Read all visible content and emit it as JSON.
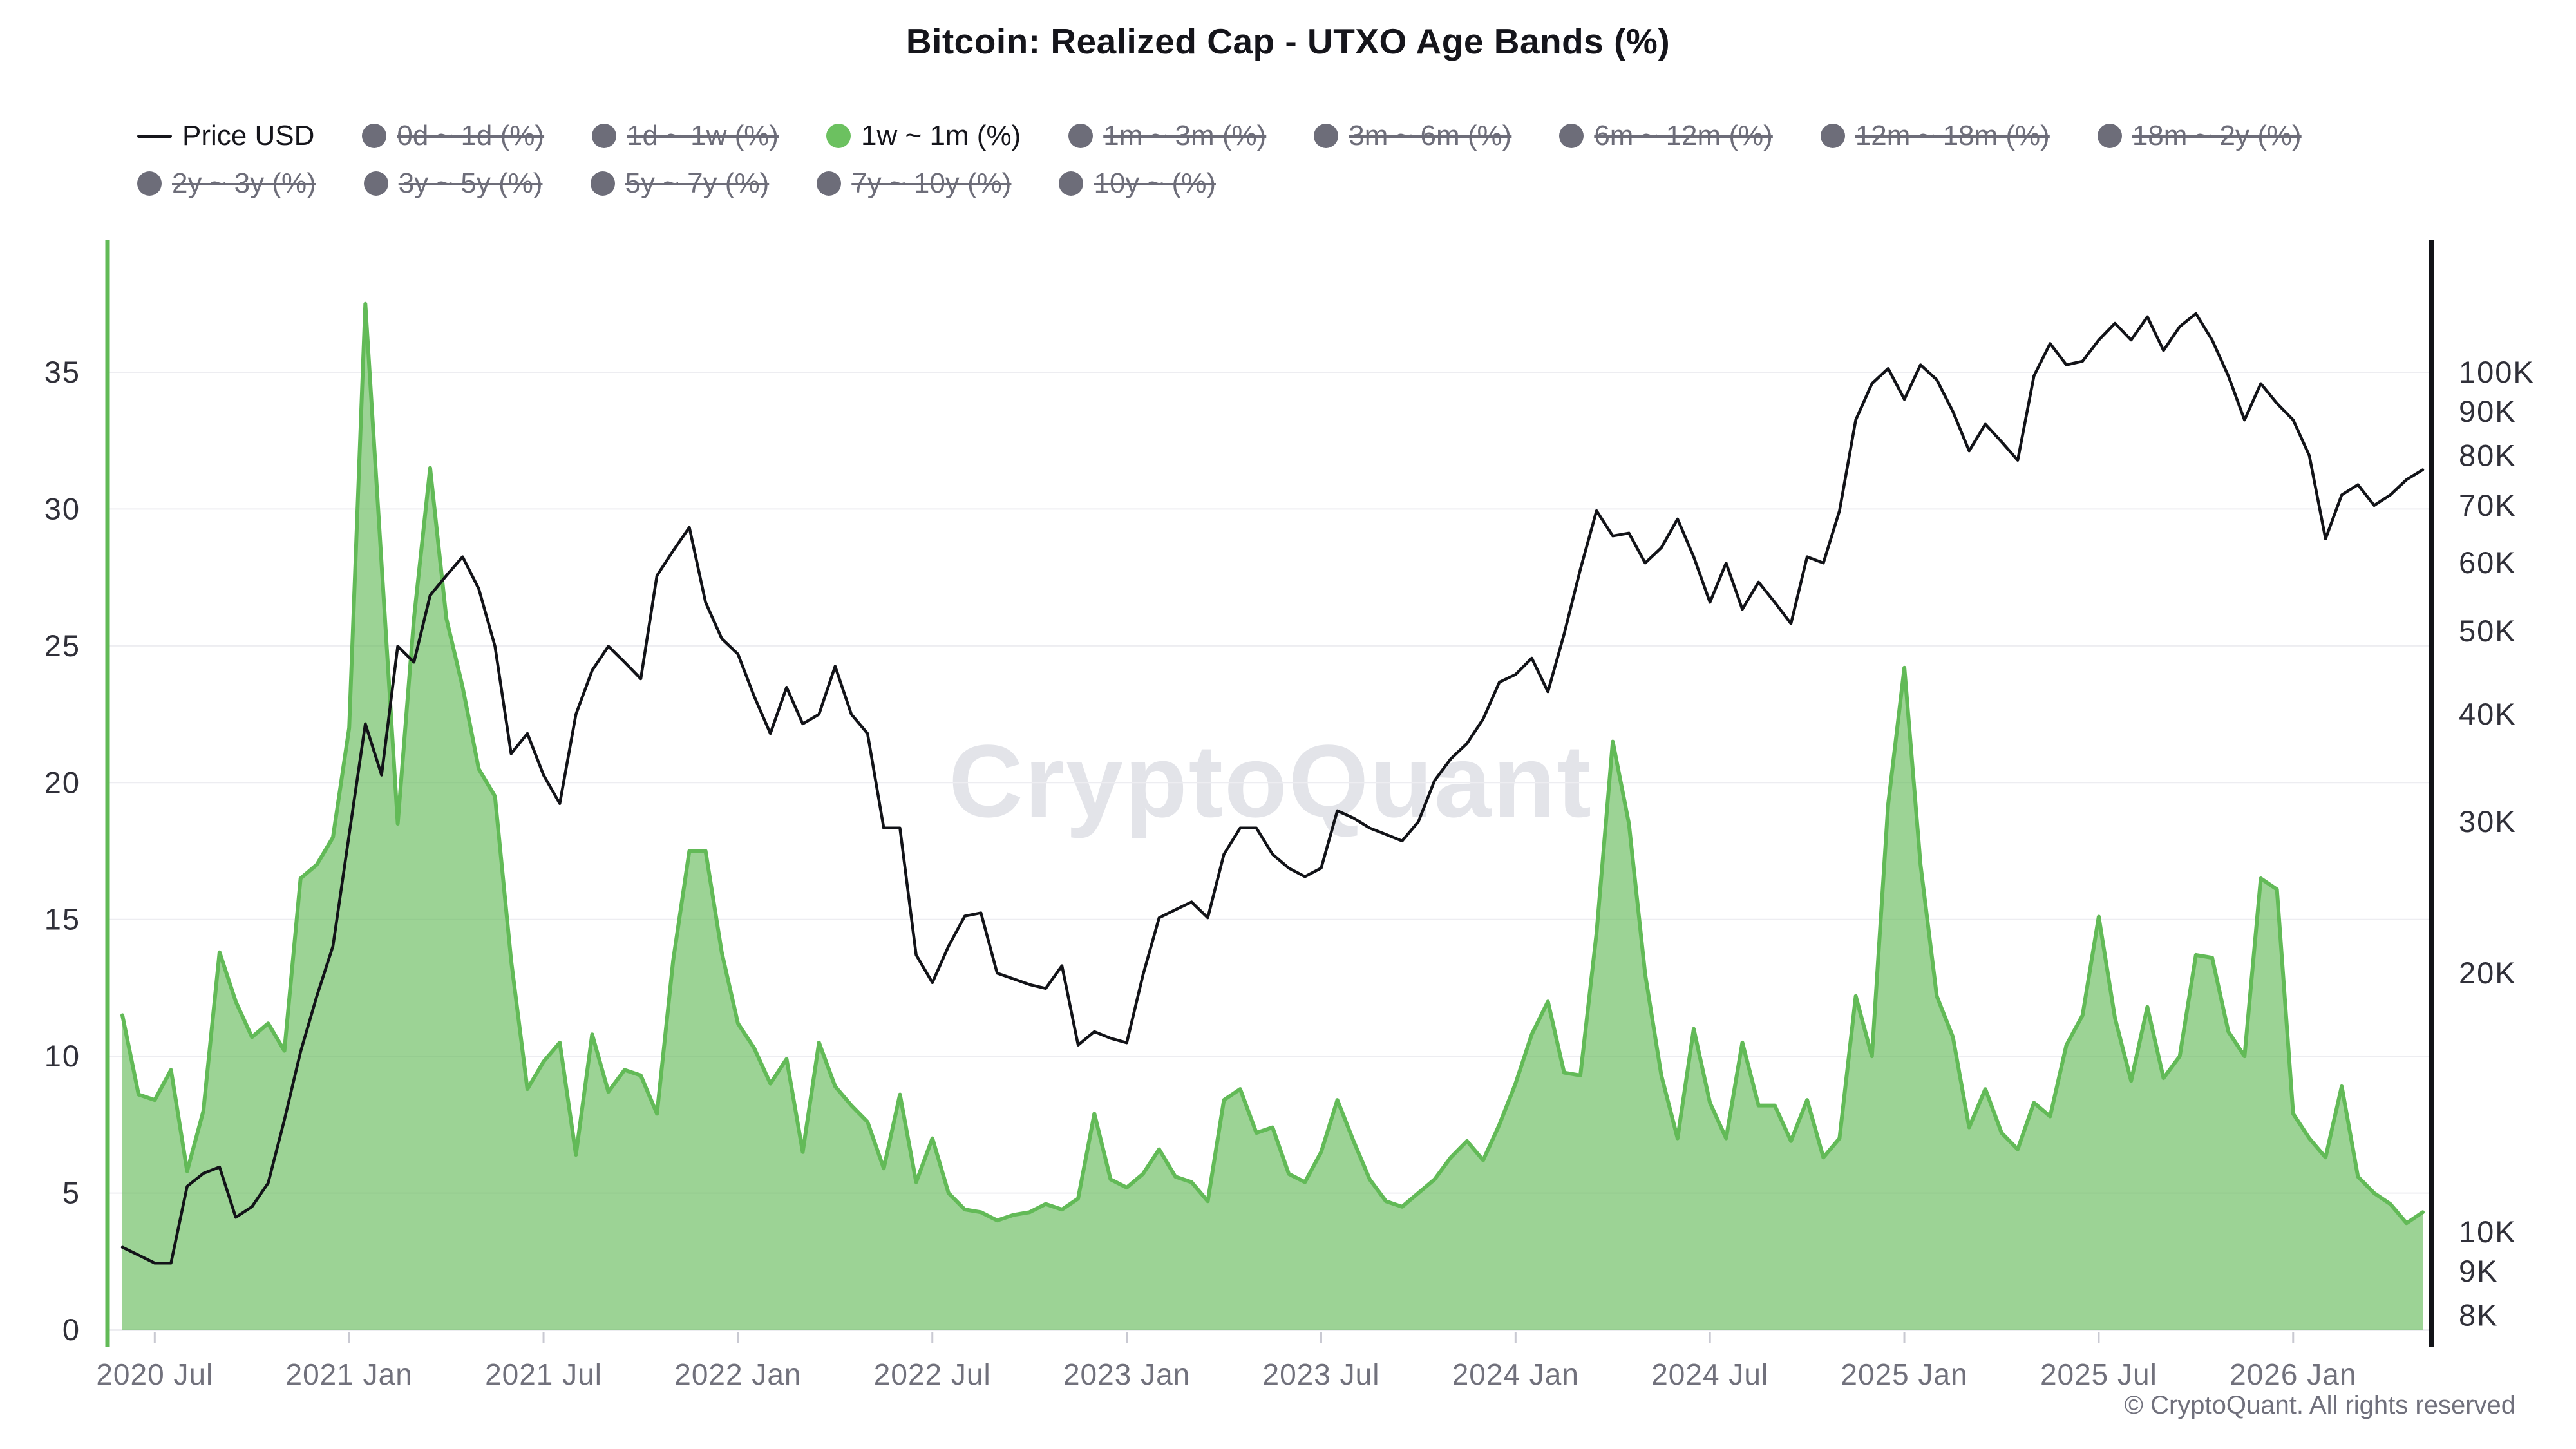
{
  "title": "Bitcoin: Realized Cap - UTXO Age Bands (%)",
  "watermark": "CryptoQuant",
  "copyright": "© CryptoQuant. All rights reserved",
  "colors": {
    "active_green": "#6cc160",
    "green_line": "#62ba57",
    "green_fill": "rgba(98,186,87,0.63)",
    "price_line": "#121318",
    "disabled_gray": "#6d6d79",
    "grid": "#ededf1",
    "axis_label_dark": "#303039",
    "x_label_gray": "#71717c",
    "tick_mark": "#c9c9d2"
  },
  "legend": {
    "rows": [
      [
        {
          "label": "Price USD",
          "marker": "line",
          "color": "#15151b",
          "disabled": false
        },
        {
          "label": "0d ~ 1d (%)",
          "marker": "dot",
          "color": "#6d6d79",
          "disabled": true
        },
        {
          "label": "1d ~ 1w (%)",
          "marker": "dot",
          "color": "#6d6d79",
          "disabled": true
        },
        {
          "label": "1w ~ 1m (%)",
          "marker": "dot",
          "color": "#6cc160",
          "disabled": false
        },
        {
          "label": "1m ~ 3m (%)",
          "marker": "dot",
          "color": "#6d6d79",
          "disabled": true
        },
        {
          "label": "3m ~ 6m (%)",
          "marker": "dot",
          "color": "#6d6d79",
          "disabled": true
        },
        {
          "label": "6m ~ 12m (%)",
          "marker": "dot",
          "color": "#6d6d79",
          "disabled": true
        },
        {
          "label": "12m ~ 18m (%)",
          "marker": "dot",
          "color": "#6d6d79",
          "disabled": true
        },
        {
          "label": "18m ~ 2y (%)",
          "marker": "dot",
          "color": "#6d6d79",
          "disabled": true
        }
      ],
      [
        {
          "label": "2y ~ 3y (%)",
          "marker": "dot",
          "color": "#6d6d79",
          "disabled": true
        },
        {
          "label": "3y ~ 5y (%)",
          "marker": "dot",
          "color": "#6d6d79",
          "disabled": true
        },
        {
          "label": "5y ~ 7y (%)",
          "marker": "dot",
          "color": "#6d6d79",
          "disabled": true
        },
        {
          "label": "7y ~ 10y (%)",
          "marker": "dot",
          "color": "#6d6d79",
          "disabled": true
        },
        {
          "label": "10y ~ (%)",
          "marker": "dot",
          "color": "#6d6d79",
          "disabled": true
        }
      ]
    ]
  },
  "chart_data": {
    "type": "area",
    "note": "Two visible series sampled at half-month steps starting 2020-06-01; remaining UTXO age bands are toggled off in the legend.",
    "start_date": "2020-06-01",
    "step_months": 0.5,
    "series": [
      {
        "name": "1w ~ 1m (%)",
        "axis": "left",
        "style": "area",
        "values": [
          11.5,
          8.6,
          8.4,
          9.5,
          5.8,
          8.0,
          13.8,
          12.0,
          10.7,
          11.2,
          10.2,
          16.5,
          17.0,
          18.0,
          22.0,
          37.5,
          28.0,
          18.5,
          26.0,
          31.5,
          26.0,
          23.5,
          20.5,
          19.5,
          13.5,
          8.8,
          9.8,
          10.5,
          6.4,
          10.8,
          8.7,
          9.5,
          9.3,
          7.9,
          13.5,
          17.5,
          17.5,
          13.8,
          11.2,
          10.3,
          9.0,
          9.9,
          6.5,
          10.5,
          8.9,
          8.2,
          7.6,
          5.9,
          8.6,
          5.4,
          7.0,
          5.0,
          4.4,
          4.3,
          4.0,
          4.2,
          4.3,
          4.6,
          4.4,
          4.8,
          7.9,
          5.5,
          5.2,
          5.7,
          6.6,
          5.6,
          5.4,
          4.7,
          8.4,
          8.8,
          7.2,
          7.4,
          5.7,
          5.4,
          6.5,
          8.4,
          6.9,
          5.5,
          4.7,
          4.5,
          5.0,
          5.5,
          6.3,
          6.9,
          6.2,
          7.5,
          9.0,
          10.8,
          12.0,
          9.4,
          9.3,
          14.5,
          21.5,
          18.5,
          13.0,
          9.3,
          7.0,
          11.0,
          8.3,
          7.0,
          10.5,
          8.2,
          8.2,
          6.9,
          8.4,
          6.3,
          7.0,
          12.2,
          10.0,
          19.2,
          24.2,
          17.0,
          12.2,
          10.7,
          7.4,
          8.8,
          7.2,
          6.6,
          8.3,
          7.8,
          10.4,
          11.5,
          15.1,
          11.4,
          9.1,
          11.8,
          9.2,
          10.0,
          13.7,
          13.6,
          10.9,
          10.0,
          16.5,
          16.1,
          7.9,
          7.0,
          6.3,
          8.9,
          5.6,
          5.0,
          4.6,
          3.9,
          4.3
        ]
      },
      {
        "name": "Price USD",
        "axis": "right-log",
        "style": "line",
        "unit": "USD thousands",
        "values": [
          9.6,
          9.4,
          9.2,
          9.2,
          11.3,
          11.7,
          11.9,
          10.4,
          10.7,
          11.4,
          13.5,
          16.2,
          18.8,
          21.5,
          29,
          39,
          34,
          48,
          46,
          55,
          58,
          61,
          56,
          48,
          36,
          38,
          34,
          31.5,
          40,
          45,
          48,
          46,
          44,
          58,
          62,
          66,
          54,
          49,
          47,
          42,
          38,
          43,
          39,
          40,
          45.5,
          40,
          38,
          29.5,
          29.5,
          21,
          19.5,
          21.5,
          23.3,
          23.5,
          20,
          19.7,
          19.4,
          19.2,
          20.4,
          16.5,
          17.1,
          16.8,
          16.6,
          19.9,
          23.2,
          23.7,
          24.2,
          23.2,
          27.5,
          29.5,
          29.5,
          27.5,
          26.5,
          25.9,
          26.5,
          30.9,
          30.3,
          29.5,
          29.0,
          28.5,
          30.0,
          33.5,
          35.5,
          37.0,
          39.5,
          43.6,
          44.5,
          46.5,
          42.5,
          49.6,
          59,
          69,
          64.5,
          65,
          60,
          62.5,
          67.5,
          61,
          54,
          60,
          53,
          57,
          54,
          51,
          61,
          60,
          69,
          88,
          97,
          101,
          93,
          102,
          98,
          90,
          81,
          87,
          83,
          79,
          99,
          108,
          102,
          103,
          109,
          114,
          109,
          116,
          106,
          113,
          117,
          109,
          99,
          88,
          97,
          92,
          88,
          80,
          64,
          72,
          74,
          70,
          72,
          75,
          77
        ]
      }
    ],
    "left_axis": {
      "ticks": [
        0,
        5,
        10,
        15,
        20,
        25,
        30,
        35
      ],
      "range": [
        0,
        39.8
      ],
      "grid": true
    },
    "right_axis": {
      "scale": "log",
      "tick_values_k": [
        8,
        9,
        10,
        20,
        30,
        40,
        50,
        60,
        70,
        80,
        90,
        100
      ],
      "tick_labels": [
        "8K",
        "9K",
        "10K",
        "20K",
        "30K",
        "40K",
        "50K",
        "60K",
        "70K",
        "80K",
        "90K",
        "100K"
      ]
    },
    "x_axis": {
      "ticks": [
        {
          "m": 1,
          "label": "2020 Jul"
        },
        {
          "m": 7,
          "label": "2021 Jan"
        },
        {
          "m": 13,
          "label": "2021 Jul"
        },
        {
          "m": 19,
          "label": "2022 Jan"
        },
        {
          "m": 25,
          "label": "2022 Jul"
        },
        {
          "m": 31,
          "label": "2023 Jan"
        },
        {
          "m": 37,
          "label": "2023 Jul"
        },
        {
          "m": 43,
          "label": "2024 Jan"
        },
        {
          "m": 49,
          "label": "2024 Jul"
        },
        {
          "m": 55,
          "label": "2025 Jan"
        },
        {
          "m": 61,
          "label": "2025 Jul"
        },
        {
          "m": 67,
          "label": "2026 Jan"
        }
      ]
    }
  }
}
